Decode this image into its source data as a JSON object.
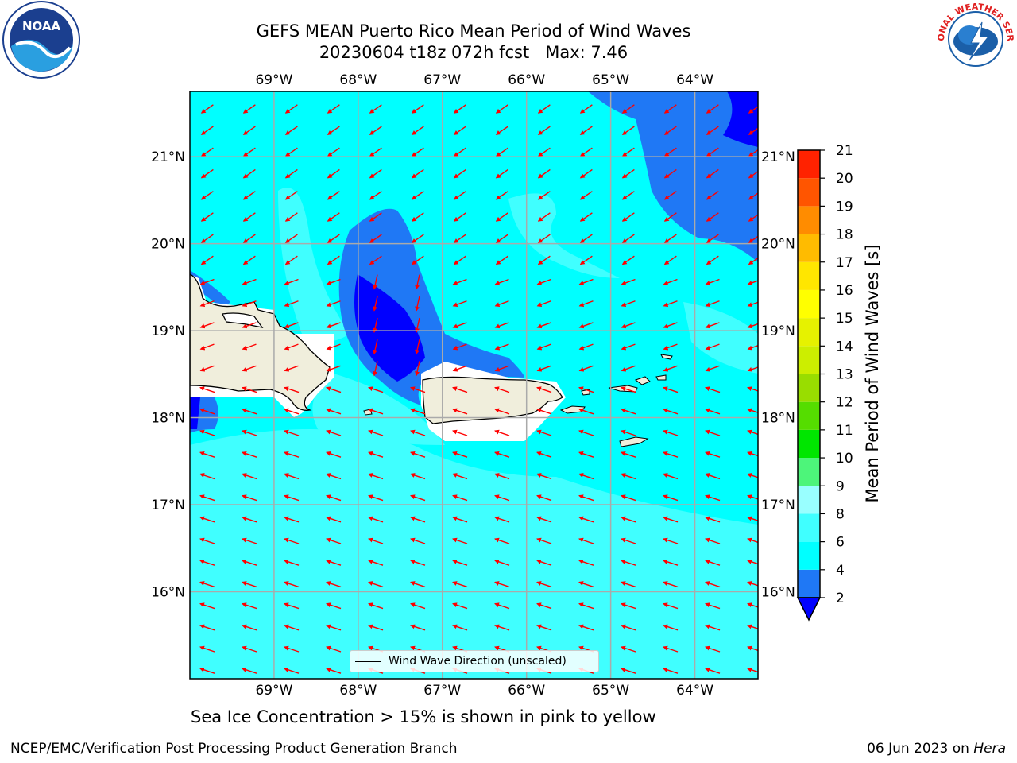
{
  "title": {
    "line1": "GEFS MEAN Puerto Rico Mean Period of Wind Waves",
    "line2": "20230604 t18z 072h fcst   Max: 7.46"
  },
  "axes": {
    "lon_labels": [
      "69°W",
      "68°W",
      "67°W",
      "66°W",
      "65°W",
      "64°W"
    ],
    "lat_labels": [
      "21°N",
      "20°N",
      "19°N",
      "18°N",
      "17°N",
      "16°N"
    ],
    "lon_values": [
      -69,
      -68,
      -67,
      -66,
      -65,
      -64
    ],
    "lat_values": [
      21,
      20,
      19,
      18,
      17,
      16
    ],
    "lon_range": [
      -70,
      -63.25
    ],
    "lat_range": [
      15,
      21.75
    ],
    "grid": true
  },
  "legend": {
    "label": "Wind Wave Direction (unscaled)"
  },
  "colorbar": {
    "label": "Mean Period of Wind Waves [s]",
    "ticks": [
      2,
      4,
      6,
      8,
      9,
      10,
      11,
      12,
      13,
      14,
      15,
      16,
      17,
      18,
      19,
      20,
      21
    ],
    "colors": [
      "#1f78f5",
      "#00ffff",
      "#40ffff",
      "#99ffff",
      "#4df57a",
      "#00e600",
      "#55dd00",
      "#99dd00",
      "#ccee00",
      "#e6f200",
      "#ffff00",
      "#ffe600",
      "#ffbb00",
      "#ff8c00",
      "#ff5500",
      "#ff2200"
    ],
    "under_color": "#0000ff"
  },
  "map": {
    "ocean_colors": {
      "period_2_4": "#1f78f5",
      "period_4_6": "#00ffff",
      "period_6_8": "#40ffff",
      "period_lt_2": "#0000ff"
    },
    "land_color": "#f0eedc",
    "arrow_color": "#ff0000"
  },
  "caption": "Sea Ice Concentration > 15% is shown in pink to yellow",
  "footer": {
    "left": "NCEP/EMC/Verification Post Processing Product Generation Branch",
    "right_date": "06 Jun 2023 on ",
    "right_host": "Hera"
  },
  "logos": {
    "noaa": "NOAA",
    "nws": "NATIONAL WEATHER SERVICE"
  }
}
